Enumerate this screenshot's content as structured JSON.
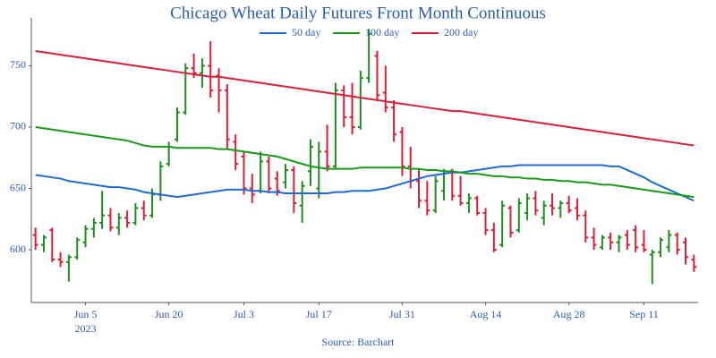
{
  "chart_data": {
    "type": "ohlc",
    "title": "Chicago Wheat Daily Futures Front Month Continuous",
    "source": "Source: Barchart",
    "title_color": "#1f9a1f",
    "up_color": "#1f8f1f",
    "down_color": "#d8203a",
    "categories": [
      "2023-05-25",
      "2023-05-26",
      "2023-05-30",
      "2023-05-31",
      "2023-06-01",
      "2023-06-02",
      "2023-06-05",
      "2023-06-06",
      "2023-06-07",
      "2023-06-08",
      "2023-06-09",
      "2023-06-12",
      "2023-06-13",
      "2023-06-14",
      "2023-06-15",
      "2023-06-16",
      "2023-06-20",
      "2023-06-21",
      "2023-06-22",
      "2023-06-23",
      "2023-06-26",
      "2023-06-27",
      "2023-06-28",
      "2023-06-29",
      "2023-06-30",
      "2023-07-03",
      "2023-07-05",
      "2023-07-06",
      "2023-07-07",
      "2023-07-10",
      "2023-07-11",
      "2023-07-12",
      "2023-07-13",
      "2023-07-14",
      "2023-07-17",
      "2023-07-18",
      "2023-07-19",
      "2023-07-20",
      "2023-07-21",
      "2023-07-24",
      "2023-07-25",
      "2023-07-26",
      "2023-07-27",
      "2023-07-28",
      "2023-07-31",
      "2023-08-01",
      "2023-08-02",
      "2023-08-03",
      "2023-08-04",
      "2023-08-07",
      "2023-08-08",
      "2023-08-09",
      "2023-08-10",
      "2023-08-11",
      "2023-08-14",
      "2023-08-15",
      "2023-08-16",
      "2023-08-17",
      "2023-08-18",
      "2023-08-21",
      "2023-08-22",
      "2023-08-23",
      "2023-08-24",
      "2023-08-25",
      "2023-08-28",
      "2023-08-29",
      "2023-08-30",
      "2023-08-31",
      "2023-09-01",
      "2023-09-05",
      "2023-09-06",
      "2023-09-07",
      "2023-09-08",
      "2023-09-11",
      "2023-09-12",
      "2023-09-13",
      "2023-09-14",
      "2023-09-15",
      "2023-09-18",
      "2023-09-19"
    ],
    "open": [
      612,
      604,
      616,
      592,
      590,
      594,
      606,
      617,
      622,
      628,
      618,
      626,
      622,
      634,
      628,
      645,
      670,
      690,
      712,
      748,
      744,
      750,
      742,
      730,
      688,
      676,
      650,
      648,
      672,
      658,
      655,
      665,
      636,
      664,
      650,
      680,
      668,
      730,
      708,
      700,
      740,
      758,
      728,
      716,
      696,
      668,
      656,
      640,
      632,
      648,
      664,
      644,
      638,
      642,
      630,
      616,
      604,
      634,
      616,
      630,
      642,
      626,
      636,
      634,
      638,
      634,
      628,
      610,
      602,
      610,
      606,
      612,
      616,
      604,
      596,
      598,
      602,
      612,
      606,
      592
    ],
    "high": [
      618,
      612,
      618,
      598,
      596,
      610,
      620,
      626,
      648,
      634,
      630,
      632,
      638,
      640,
      650,
      672,
      688,
      716,
      752,
      760,
      756,
      770,
      748,
      735,
      694,
      680,
      662,
      680,
      676,
      664,
      670,
      668,
      656,
      690,
      688,
      702,
      736,
      734,
      736,
      746,
      780,
      762,
      750,
      722,
      700,
      684,
      666,
      656,
      660,
      666,
      666,
      660,
      646,
      644,
      634,
      622,
      640,
      636,
      642,
      646,
      648,
      640,
      646,
      640,
      644,
      642,
      632,
      618,
      612,
      614,
      612,
      616,
      620,
      616,
      600,
      610,
      616,
      614,
      610,
      596
    ],
    "low": [
      600,
      598,
      590,
      586,
      574,
      592,
      602,
      610,
      617,
      615,
      612,
      618,
      620,
      624,
      626,
      640,
      668,
      688,
      710,
      740,
      732,
      724,
      712,
      682,
      665,
      645,
      638,
      646,
      646,
      644,
      650,
      630,
      622,
      652,
      642,
      664,
      666,
      700,
      694,
      698,
      736,
      722,
      712,
      688,
      660,
      650,
      634,
      628,
      630,
      640,
      640,
      636,
      630,
      628,
      612,
      598,
      602,
      610,
      614,
      624,
      628,
      620,
      628,
      626,
      630,
      624,
      606,
      600,
      600,
      600,
      598,
      600,
      598,
      598,
      572,
      594,
      598,
      596,
      588,
      582
    ],
    "close": [
      604,
      610,
      592,
      590,
      594,
      608,
      617,
      622,
      628,
      618,
      626,
      622,
      634,
      628,
      645,
      668,
      684,
      712,
      748,
      744,
      750,
      730,
      730,
      690,
      670,
      650,
      645,
      672,
      650,
      648,
      665,
      638,
      652,
      684,
      680,
      668,
      730,
      708,
      700,
      740,
      776,
      726,
      716,
      694,
      668,
      656,
      640,
      632,
      656,
      664,
      644,
      638,
      642,
      630,
      616,
      600,
      636,
      614,
      638,
      642,
      632,
      636,
      634,
      638,
      632,
      628,
      610,
      604,
      610,
      606,
      610,
      604,
      602,
      600,
      598,
      608,
      612,
      600,
      594,
      586
    ],
    "series": [
      {
        "name": "50 day",
        "color": "#1f6bd6",
        "values": [
          661,
          660,
          659,
          658,
          656,
          655,
          654,
          653,
          652,
          651,
          651,
          650,
          649,
          647,
          646,
          645,
          644,
          643,
          644,
          645,
          646,
          647,
          648,
          649,
          649,
          649,
          648,
          648,
          647,
          647,
          646,
          646,
          646,
          646,
          646,
          646,
          647,
          647,
          648,
          648,
          648,
          649,
          650,
          652,
          654,
          656,
          658,
          660,
          661,
          662,
          663,
          663,
          664,
          665,
          666,
          667,
          668,
          668,
          669,
          669,
          669,
          669,
          669,
          669,
          669,
          669,
          669,
          669,
          669,
          668,
          668,
          665,
          662,
          659,
          655,
          652,
          649,
          646,
          643,
          640
        ]
      },
      {
        "name": "100 day",
        "color": "#1a9a1a",
        "values": [
          700,
          699,
          698,
          697,
          696,
          695,
          694,
          693,
          692,
          691,
          690,
          689,
          687,
          685,
          684,
          684,
          684,
          683,
          683,
          683,
          683,
          683,
          682,
          682,
          681,
          680,
          679,
          678,
          677,
          676,
          674,
          672,
          670,
          668,
          667,
          666,
          666,
          666,
          666,
          667,
          667,
          667,
          667,
          667,
          667,
          666,
          666,
          665,
          665,
          664,
          664,
          663,
          662,
          662,
          661,
          660,
          660,
          659,
          659,
          658,
          658,
          657,
          657,
          656,
          656,
          655,
          655,
          654,
          653,
          653,
          652,
          651,
          650,
          649,
          648,
          647,
          646,
          645,
          644,
          643
        ]
      },
      {
        "name": "200 day",
        "color": "#d8203a",
        "values": [
          762,
          761,
          760,
          759,
          758,
          757,
          756,
          755,
          754,
          753,
          752,
          751,
          750,
          749,
          748,
          747,
          746,
          745,
          744,
          743,
          742,
          741,
          741,
          740,
          739,
          738,
          737,
          736,
          735,
          734,
          733,
          732,
          731,
          730,
          729,
          728,
          727,
          726,
          725,
          724,
          723,
          722,
          721,
          720,
          719,
          718,
          717,
          716,
          715,
          714,
          713,
          713,
          712,
          711,
          710,
          709,
          708,
          707,
          706,
          705,
          704,
          703,
          702,
          701,
          700,
          699,
          698,
          697,
          696,
          695,
          694,
          693,
          692,
          691,
          690,
          689,
          688,
          687,
          686,
          685
        ]
      }
    ],
    "ylim": [
      557,
      789
    ],
    "yticks": [
      600,
      650,
      700,
      750
    ],
    "xticks": [
      {
        "value": "2023-06-05",
        "label": "Jun 5"
      },
      {
        "value": "2023-06-20",
        "label": "Jun 20"
      },
      {
        "value": "2023-07-03",
        "label": "Jul 3"
      },
      {
        "value": "2023-07-17",
        "label": "Jul 17"
      },
      {
        "value": "2023-07-31",
        "label": "Jul 31"
      },
      {
        "value": "2023-08-14",
        "label": "Aug 14"
      },
      {
        "value": "2023-08-28",
        "label": "Aug 28"
      },
      {
        "value": "2023-09-11",
        "label": "Sep 11"
      }
    ],
    "x_year_label": "2023",
    "grid": false
  }
}
